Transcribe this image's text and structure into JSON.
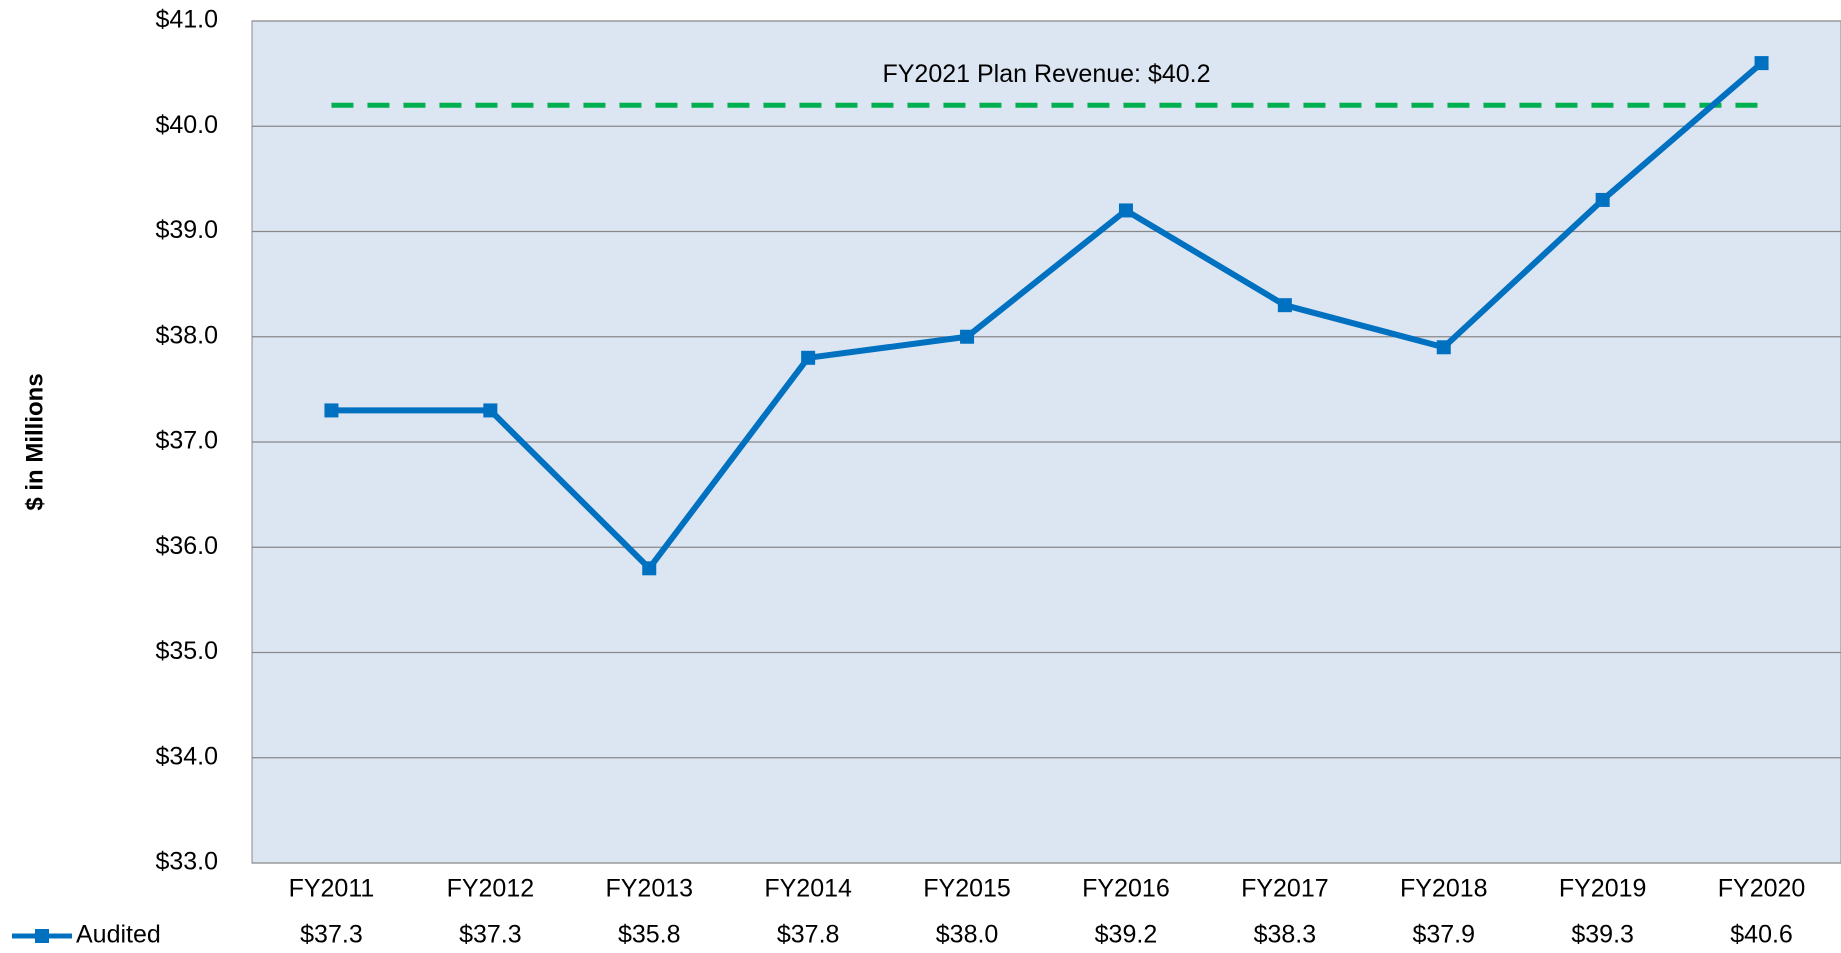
{
  "chart_data": {
    "type": "line",
    "y_label": "$ in Millions",
    "categories": [
      "FY2011",
      "FY2012",
      "FY2013",
      "FY2014",
      "FY2015",
      "FY2016",
      "FY2017",
      "FY2018",
      "FY2019",
      "FY2020"
    ],
    "series": [
      {
        "name": "Audited",
        "color": "#0070c0",
        "values": [
          37.3,
          37.3,
          35.8,
          37.8,
          38.0,
          39.2,
          38.3,
          37.9,
          39.3,
          40.6
        ],
        "value_labels": [
          "$37.3",
          "$37.3",
          "$35.8",
          "$37.8",
          "$38.0",
          "$39.2",
          "$38.3",
          "$37.9",
          "$39.3",
          "$40.6"
        ]
      }
    ],
    "reference_line": {
      "value": 40.2,
      "label": "FY2021 Plan Revenue: $40.2",
      "color": "#00b050"
    },
    "ylim": [
      33,
      41
    ],
    "yticks": [
      {
        "value": 33,
        "label": "$33.0"
      },
      {
        "value": 34,
        "label": "$34.0"
      },
      {
        "value": 35,
        "label": "$35.0"
      },
      {
        "value": 36,
        "label": "$36.0"
      },
      {
        "value": 37,
        "label": "$37.0"
      },
      {
        "value": 38,
        "label": "$38.0"
      },
      {
        "value": 39,
        "label": "$39.0"
      },
      {
        "value": 40,
        "label": "$40.0"
      },
      {
        "value": 41,
        "label": "$41.0"
      }
    ],
    "grid": true
  }
}
